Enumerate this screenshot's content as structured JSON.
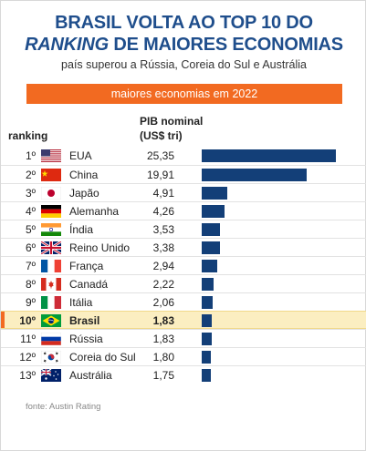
{
  "title_line1": "BRASIL VOLTA AO TOP 10 DO",
  "title_line2_italic": "RANKING",
  "title_line2_rest": " DE MAIORES ECONOMIAS",
  "subtitle": "país superou a Rússia, Coreia do Sul e Austrália",
  "banner": "maiores economias em 2022",
  "col_rank": "ranking",
  "col_pib_1": "PIB nominal",
  "col_pib_2": "(US$ tri)",
  "source": "fonte: Austin Rating",
  "colors": {
    "bar": "#133f78",
    "title": "#1f4e8c",
    "banner": "#f26a21",
    "highlight": "#fbeec1"
  },
  "chart_data": {
    "type": "bar",
    "orientation": "horizontal",
    "title": "maiores economias em 2022",
    "ylabel": "PIB nominal (US$ tri)",
    "highlight": "Brasil",
    "xlim": [
      0,
      25.35
    ],
    "rows": [
      {
        "rank": "1º",
        "flag": "usa-flag-icon",
        "country": "EUA",
        "value_label": "25,35",
        "value": 25.35
      },
      {
        "rank": "2º",
        "flag": "china-flag-icon",
        "country": "China",
        "value_label": "19,91",
        "value": 19.91
      },
      {
        "rank": "3º",
        "flag": "japan-flag-icon",
        "country": "Japão",
        "value_label": "4,91",
        "value": 4.91
      },
      {
        "rank": "4º",
        "flag": "germany-flag-icon",
        "country": "Alemanha",
        "value_label": "4,26",
        "value": 4.26
      },
      {
        "rank": "5º",
        "flag": "india-flag-icon",
        "country": "Índia",
        "value_label": "3,53",
        "value": 3.53
      },
      {
        "rank": "6º",
        "flag": "uk-flag-icon",
        "country": "Reino Unido",
        "value_label": "3,38",
        "value": 3.38
      },
      {
        "rank": "7º",
        "flag": "france-flag-icon",
        "country": "França",
        "value_label": "2,94",
        "value": 2.94
      },
      {
        "rank": "8º",
        "flag": "canada-flag-icon",
        "country": "Canadá",
        "value_label": "2,22",
        "value": 2.22
      },
      {
        "rank": "9º",
        "flag": "italy-flag-icon",
        "country": "Itália",
        "value_label": "2,06",
        "value": 2.06
      },
      {
        "rank": "10º",
        "flag": "brazil-flag-icon",
        "country": "Brasil",
        "value_label": "1,83",
        "value": 1.83
      },
      {
        "rank": "11º",
        "flag": "russia-flag-icon",
        "country": "Rússia",
        "value_label": "1,83",
        "value": 1.83
      },
      {
        "rank": "12º",
        "flag": "south-korea-flag-icon",
        "country": "Coreia do Sul",
        "value_label": "1,80",
        "value": 1.8
      },
      {
        "rank": "13º",
        "flag": "australia-flag-icon",
        "country": "Austrália",
        "value_label": "1,75",
        "value": 1.75
      }
    ]
  }
}
